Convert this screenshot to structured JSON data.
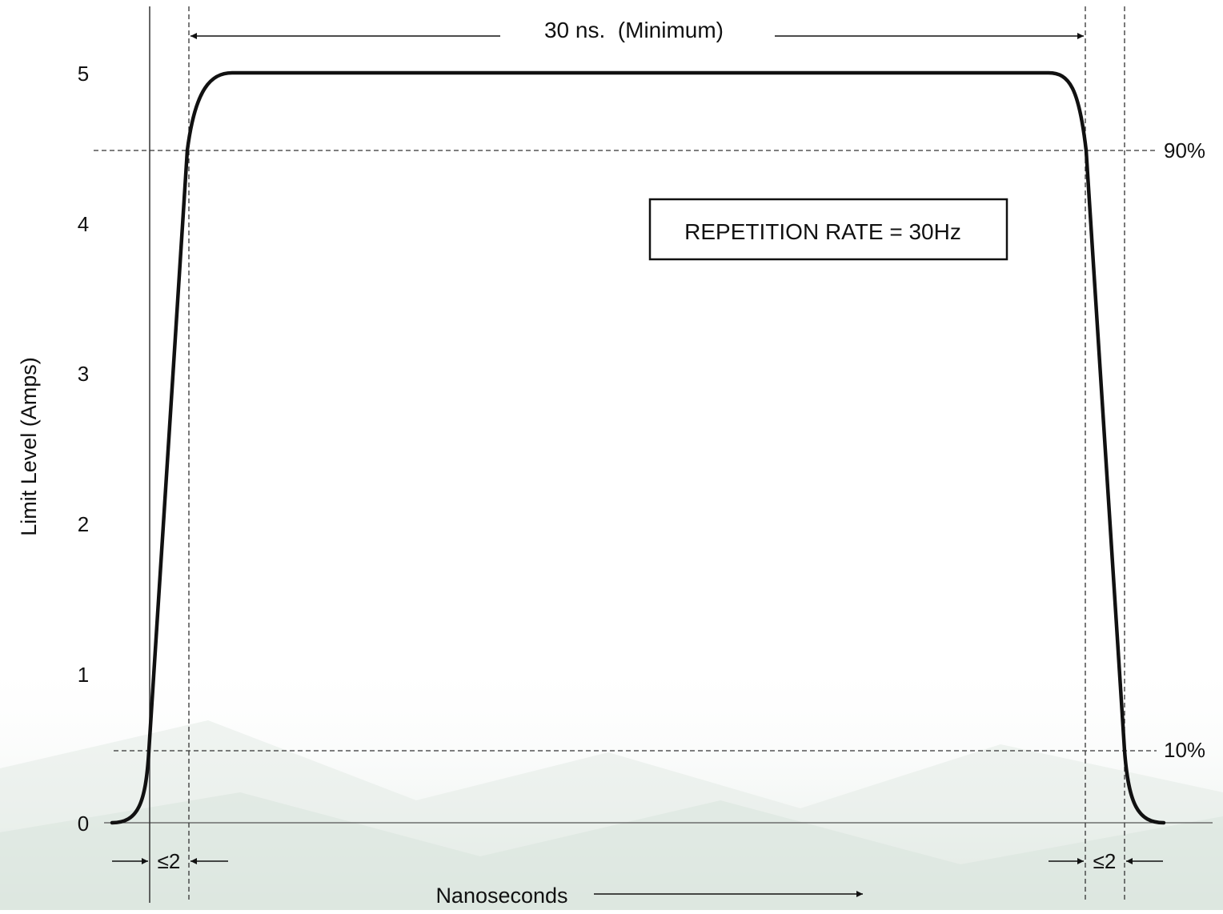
{
  "diagram": {
    "y_axis": {
      "label": "Limit Level (Amps)",
      "ticks": [
        "0",
        "1",
        "2",
        "3",
        "4",
        "5"
      ]
    },
    "x_axis": {
      "label": "Nanoseconds"
    },
    "pulse_width_label": "30 ns.  (Minimum)",
    "threshold_high_label": "90%",
    "threshold_low_label": "10%",
    "rise_time_label": "≤2",
    "fall_time_label": "≤2",
    "repetition_rate_label": "REPETITION RATE = 30Hz"
  },
  "colors": {
    "ink": "#111111",
    "guide": "#333333",
    "background_tint": "#e6ede8"
  }
}
